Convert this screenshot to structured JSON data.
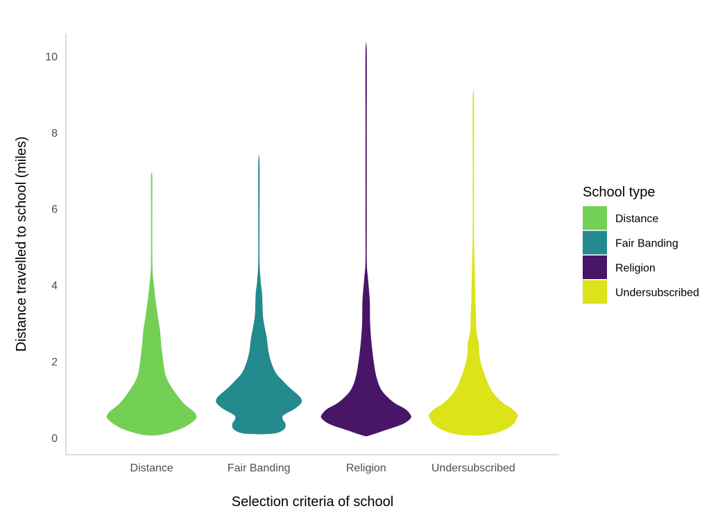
{
  "chart_data": {
    "type": "violin",
    "title": "",
    "xlabel": "Selection criteria of school",
    "ylabel": "Distance travelled to school (miles)",
    "ylim": [
      -0.45,
      10.6
    ],
    "yticks": [
      0,
      2,
      4,
      6,
      8,
      10
    ],
    "grid": false,
    "legend": {
      "title": "School type",
      "position": "right"
    },
    "categories": [
      "Distance",
      "Fair Banding",
      "Religion",
      "Undersubscribed"
    ],
    "series": [
      {
        "name": "Distance",
        "color": "#73D055",
        "density": [
          [
            0.07,
            0.18
          ],
          [
            0.2,
            0.6
          ],
          [
            0.35,
            0.85
          ],
          [
            0.5,
            1.0
          ],
          [
            0.6,
            1.0
          ],
          [
            0.7,
            0.93
          ],
          [
            0.8,
            0.82
          ],
          [
            0.9,
            0.72
          ],
          [
            1.1,
            0.58
          ],
          [
            1.3,
            0.46
          ],
          [
            1.5,
            0.36
          ],
          [
            1.7,
            0.3
          ],
          [
            2.0,
            0.26
          ],
          [
            2.5,
            0.21
          ],
          [
            2.8,
            0.19
          ],
          [
            3.1,
            0.15
          ],
          [
            3.5,
            0.1
          ],
          [
            4.0,
            0.05
          ],
          [
            4.4,
            0.02
          ],
          [
            5.0,
            0.008
          ],
          [
            6.0,
            0.006
          ],
          [
            6.85,
            0.004
          ]
        ]
      },
      {
        "name": "Fair Banding",
        "color": "#238A8D",
        "density": [
          [
            0.1,
            0.3
          ],
          [
            0.2,
            0.55
          ],
          [
            0.35,
            0.6
          ],
          [
            0.5,
            0.53
          ],
          [
            0.6,
            0.57
          ],
          [
            0.75,
            0.8
          ],
          [
            0.9,
            0.95
          ],
          [
            1.0,
            0.96
          ],
          [
            1.1,
            0.9
          ],
          [
            1.3,
            0.7
          ],
          [
            1.5,
            0.53
          ],
          [
            1.7,
            0.38
          ],
          [
            2.0,
            0.27
          ],
          [
            2.3,
            0.21
          ],
          [
            2.6,
            0.18
          ],
          [
            2.9,
            0.13
          ],
          [
            3.2,
            0.09
          ],
          [
            3.5,
            0.08
          ],
          [
            3.8,
            0.07
          ],
          [
            4.1,
            0.04
          ],
          [
            4.6,
            0.015
          ],
          [
            5.5,
            0.007
          ],
          [
            7.2,
            0.005
          ]
        ]
      },
      {
        "name": "Religion",
        "color": "#481567",
        "density": [
          [
            0.05,
            0.06
          ],
          [
            0.2,
            0.45
          ],
          [
            0.35,
            0.82
          ],
          [
            0.5,
            1.0
          ],
          [
            0.6,
            1.0
          ],
          [
            0.75,
            0.88
          ],
          [
            0.9,
            0.65
          ],
          [
            1.1,
            0.45
          ],
          [
            1.3,
            0.32
          ],
          [
            1.6,
            0.23
          ],
          [
            2.0,
            0.17
          ],
          [
            2.5,
            0.12
          ],
          [
            3.0,
            0.09
          ],
          [
            3.5,
            0.085
          ],
          [
            3.8,
            0.07
          ],
          [
            4.2,
            0.04
          ],
          [
            4.6,
            0.015
          ],
          [
            5.5,
            0.008
          ],
          [
            7.0,
            0.006
          ],
          [
            8.0,
            0.007
          ],
          [
            10.1,
            0.004
          ]
        ]
      },
      {
        "name": "Undersubscribed",
        "color": "#DCE319",
        "density": [
          [
            0.07,
            0.3
          ],
          [
            0.2,
            0.7
          ],
          [
            0.35,
            0.9
          ],
          [
            0.5,
            0.98
          ],
          [
            0.6,
            1.0
          ],
          [
            0.75,
            0.88
          ],
          [
            0.9,
            0.68
          ],
          [
            1.1,
            0.5
          ],
          [
            1.3,
            0.38
          ],
          [
            1.6,
            0.27
          ],
          [
            2.0,
            0.16
          ],
          [
            2.3,
            0.13
          ],
          [
            2.5,
            0.12
          ],
          [
            2.8,
            0.07
          ],
          [
            3.2,
            0.06
          ],
          [
            3.6,
            0.045
          ],
          [
            4.0,
            0.04
          ],
          [
            4.5,
            0.03
          ],
          [
            5.3,
            0.015
          ],
          [
            6.5,
            0.008
          ],
          [
            7.2,
            0.008
          ],
          [
            8.9,
            0.004
          ]
        ]
      }
    ]
  }
}
